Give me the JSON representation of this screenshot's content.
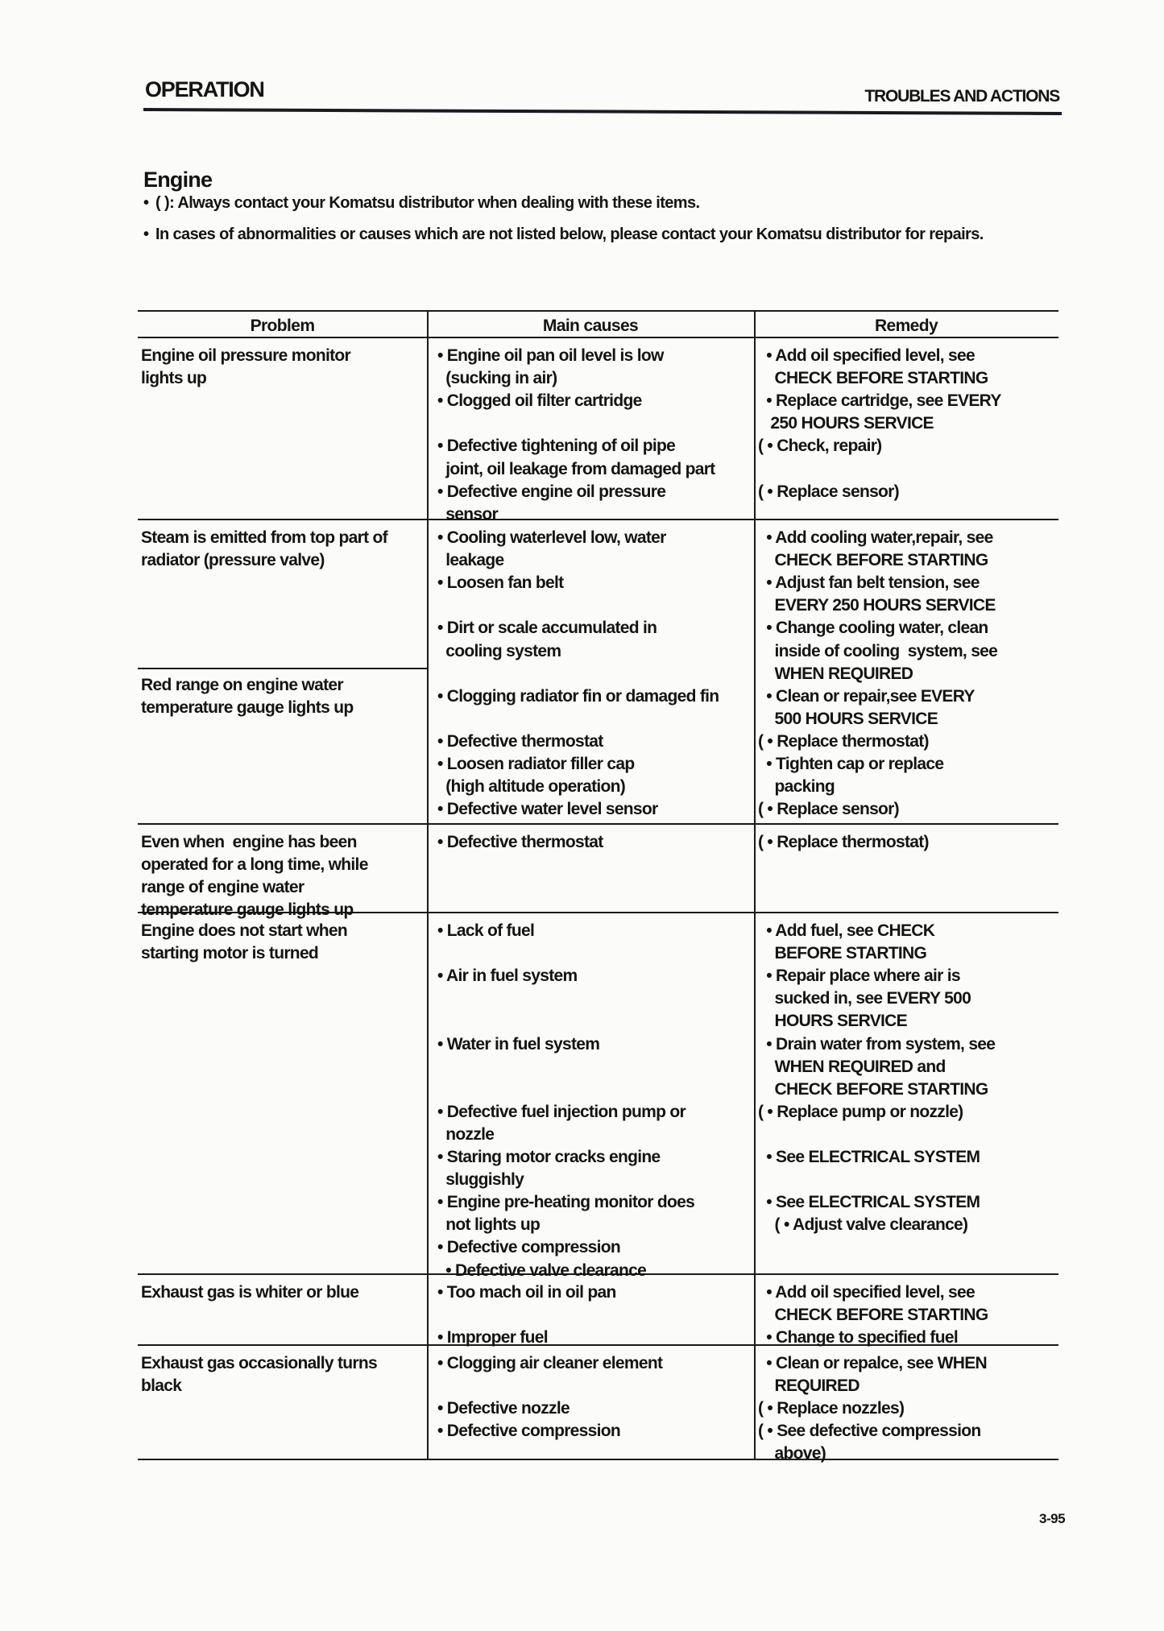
{
  "header": {
    "left": "OPERATION",
    "right": "TROUBLES AND ACTIONS"
  },
  "section": {
    "title": "Engine",
    "notes": [
      "( ): Always contact your Komatsu distributor when dealing with these items.",
      "In cases of abnormalities or causes which are not listed below, please contact your Komatsu distributor for repairs."
    ]
  },
  "table": {
    "columns": [
      "Problem",
      "Main causes",
      "Remedy"
    ],
    "rows": [
      {
        "problem": [
          [
            "Engine oil pressure monitor",
            "lights up"
          ]
        ],
        "causes": [
          [
            "• Engine oil pan oil level is low",
            "  (sucking in air)"
          ],
          [
            "• Clogged oil filter cartridge"
          ],
          [
            "• Defective tightening of oil pipe",
            "  joint, oil leakage from damaged part"
          ],
          [
            "• Defective engine oil pressure",
            "  sensor"
          ]
        ],
        "remedies": [
          [
            "  • Add oil specified level, see",
            "    CHECK BEFORE STARTING"
          ],
          [
            "  • Replace cartridge, see EVERY",
            "   250 HOURS SERVICE"
          ],
          [
            "( • Check, repair)"
          ],
          [
            "( • Replace sensor)"
          ]
        ]
      },
      {
        "problem": [
          [
            "Steam is emitted from top part of",
            "radiator (pressure valve)"
          ],
          [
            "Red range on engine water",
            "temperature gauge lights up"
          ]
        ],
        "causes": [
          [
            "• Cooling waterlevel low, water",
            "  leakage"
          ],
          [
            "• Loosen fan belt"
          ],
          [
            "• Dirt or scale accumulated in",
            "  cooling system"
          ],
          [
            "• Clogging radiator fin or damaged fin"
          ],
          [
            "• Defective thermostat"
          ],
          [
            "• Loosen radiator filler cap",
            "  (high altitude operation)"
          ],
          [
            "• Defective water level sensor"
          ]
        ],
        "remedies": [
          [
            "  • Add cooling water,repair, see",
            "    CHECK BEFORE STARTING"
          ],
          [
            "  • Adjust fan belt tension, see",
            "    EVERY 250 HOURS SERVICE"
          ],
          [
            "  • Change cooling water, clean",
            "    inside of cooling  system, see",
            "    WHEN REQUIRED"
          ],
          [
            "  • Clean or repair,see EVERY",
            "    500 HOURS SERVICE"
          ],
          [
            "( • Replace thermostat)"
          ],
          [
            "  • Tighten cap or replace",
            "    packing"
          ],
          [
            "( • Replace sensor)"
          ]
        ]
      },
      {
        "problem": [
          [
            "Even when  engine has been",
            "operated for a long time, while",
            "range of engine water",
            "temperature gauge lights up"
          ]
        ],
        "causes": [
          [
            "• Defective thermostat"
          ]
        ],
        "remedies": [
          [
            "( • Replace thermostat)"
          ]
        ]
      },
      {
        "problem": [
          [
            "Engine does not start when",
            "starting motor is turned"
          ]
        ],
        "causes": [
          [
            "• Lack of fuel"
          ],
          [
            "• Air in fuel system"
          ],
          [
            "• Water in fuel system"
          ],
          [
            "• Defective fuel injection pump or",
            "  nozzle"
          ],
          [
            "• Staring motor cracks engine",
            "  sluggishly"
          ],
          [
            "• Engine pre-heating monitor does",
            "  not lights up"
          ],
          [
            "• Defective compression"
          ],
          [
            "  • Defective valve clearance"
          ]
        ],
        "remedies": [
          [
            "  • Add fuel, see CHECK",
            "    BEFORE STARTING"
          ],
          [
            "  • Repair place where air is",
            "    sucked in, see EVERY 500",
            "    HOURS SERVICE"
          ],
          [
            "  • Drain water from system, see",
            "    WHEN REQUIRED and",
            "    CHECK BEFORE STARTING"
          ],
          [
            "( • Replace pump or nozzle)"
          ],
          [
            "  • See ELECTRICAL SYSTEM"
          ],
          [
            "  • See ELECTRICAL SYSTEM"
          ],
          [
            "    ( • Adjust valve clearance)"
          ]
        ]
      },
      {
        "problem": [
          [
            "Exhaust gas is whiter or blue"
          ]
        ],
        "causes": [
          [
            "• Too mach oil in oil pan"
          ],
          [
            "• Improper fuel"
          ]
        ],
        "remedies": [
          [
            "  • Add oil specified level, see",
            "    CHECK BEFORE STARTING"
          ],
          [
            "  • Change to specified fuel"
          ]
        ]
      },
      {
        "problem": [
          [
            "Exhaust gas occasionally turns",
            "black"
          ]
        ],
        "causes": [
          [
            "• Clogging air cleaner element"
          ],
          [
            "• Defective nozzle"
          ],
          [
            "• Defective compression"
          ]
        ],
        "remedies": [
          [
            "  • Clean or repalce, see WHEN",
            "    REQUIRED"
          ],
          [
            "( • Replace nozzles)"
          ],
          [
            "( • See defective compression",
            "    above)"
          ]
        ]
      }
    ]
  },
  "footer": {
    "page_number": "3-95"
  }
}
